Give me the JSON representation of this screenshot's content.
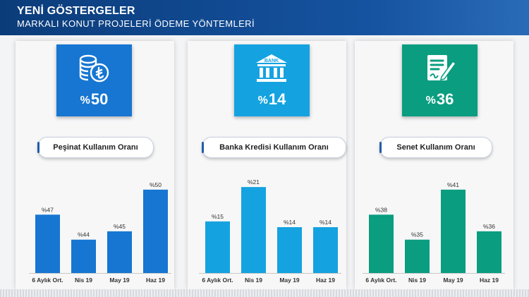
{
  "header": {
    "title": "YENİ GÖSTERGELER",
    "subtitle": "MARKALI KONUT PROJELERİ ÖDEME YÖNTEMLERİ"
  },
  "colors": {
    "blue": "#1676d2",
    "light_blue": "#14a3e0",
    "green": "#0a9d80",
    "header": "#0b3c7a"
  },
  "panels": [
    {
      "icon": "coins-lira-icon",
      "tile_value": "50",
      "tile_percent": "%",
      "title": "Peşinat Kullanım Oranı"
    },
    {
      "icon": "bank-icon",
      "tile_value": "14",
      "tile_percent": "%",
      "title": "Banka Kredisi Kullanım Oranı",
      "icon_text": "BANK"
    },
    {
      "icon": "signed-document-icon",
      "tile_value": "36",
      "tile_percent": "%",
      "title": "Senet Kullanım Oranı"
    }
  ],
  "chart_data": [
    {
      "type": "bar",
      "categories": [
        "6 Aylık Ort.",
        "Nis 19",
        "May 19",
        "Haz 19"
      ],
      "values": [
        47,
        44,
        45,
        50
      ],
      "labels": [
        "%47",
        "%44",
        "%45",
        "%50"
      ],
      "ylim": [
        40,
        51
      ],
      "color": "#1676d2"
    },
    {
      "type": "bar",
      "categories": [
        "6 Aylık Ort.",
        "Nis 19",
        "May 19",
        "Haz 19"
      ],
      "values": [
        15,
        21,
        14,
        14
      ],
      "labels": [
        "%15",
        "%21",
        "%14",
        "%14"
      ],
      "ylim": [
        6,
        22
      ],
      "color": "#14a3e0"
    },
    {
      "type": "bar",
      "categories": [
        "6 Aylık Ort.",
        "Nis 19",
        "May 19",
        "Haz 19"
      ],
      "values": [
        38,
        35,
        41,
        36
      ],
      "labels": [
        "%38",
        "%35",
        "%41",
        "%36"
      ],
      "ylim": [
        31,
        42
      ],
      "color": "#0a9d80"
    }
  ]
}
